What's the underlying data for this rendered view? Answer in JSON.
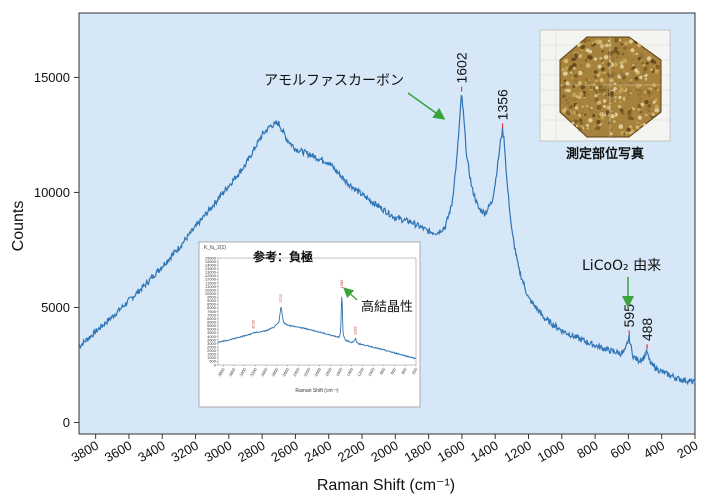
{
  "chart_data": {
    "type": "line",
    "xlabel": "Raman Shift (cm⁻¹)",
    "ylabel": "Counts",
    "xlim": [
      3900,
      200
    ],
    "ylim": [
      -500,
      17800
    ],
    "x_reversed": true,
    "x_ticks": [
      3800,
      3600,
      3400,
      3200,
      3000,
      2800,
      2600,
      2400,
      2200,
      2000,
      1800,
      1600,
      1400,
      1200,
      1000,
      800,
      600,
      400,
      200
    ],
    "y_ticks": [
      0,
      5000,
      10000,
      15000
    ],
    "grid": false,
    "background": "#d6e7f7",
    "series": [
      {
        "color": "#2f74b5",
        "x": [
          3900,
          3700,
          3500,
          3300,
          3100,
          2900,
          2800,
          2750,
          2700,
          2650,
          2600,
          2500,
          2400,
          2300,
          2200,
          2100,
          2000,
          1900,
          1800,
          1750,
          1700,
          1660,
          1630,
          1610,
          1602,
          1590,
          1570,
          1540,
          1500,
          1460,
          1420,
          1400,
          1380,
          1365,
          1356,
          1345,
          1330,
          1300,
          1260,
          1200,
          1100,
          1000,
          900,
          800,
          700,
          640,
          620,
          605,
          595,
          585,
          570,
          540,
          510,
          495,
          488,
          480,
          460,
          400,
          300,
          200
        ],
        "y": [
          3300,
          4600,
          6000,
          7600,
          9400,
          11200,
          12500,
          12900,
          13000,
          12300,
          11900,
          11600,
          11300,
          10500,
          9900,
          9400,
          8900,
          8700,
          8300,
          8250,
          8500,
          9500,
          11500,
          13500,
          14300,
          13300,
          11500,
          10200,
          9300,
          9100,
          9600,
          10400,
          11500,
          12400,
          12700,
          12200,
          10500,
          8300,
          6700,
          5400,
          4500,
          4000,
          3650,
          3350,
          3100,
          3000,
          3100,
          3500,
          3700,
          3300,
          2850,
          2700,
          2800,
          3000,
          3100,
          2800,
          2500,
          2200,
          1900,
          1750
        ]
      }
    ],
    "annotations": [
      {
        "text": "1602",
        "x": 1602,
        "y": 14300
      },
      {
        "text": "1356",
        "x": 1356,
        "y": 12700
      },
      {
        "text": "595",
        "x": 595,
        "y": 3700
      },
      {
        "text": "488",
        "x": 488,
        "y": 3100
      },
      {
        "text": "アモルファスカーボン"
      },
      {
        "text": "LiCoO₂ 由来"
      },
      {
        "text": "測定部位写真"
      }
    ],
    "inset": {
      "title": "参考：負極",
      "panel_label": "K_fu_2(1)",
      "annotation": "高結晶性",
      "xlabel": "Raman Shift (cm⁻¹)",
      "xlim": [
        3900,
        200
      ],
      "ylim": [
        0,
        15000
      ],
      "y_ticks": [
        0,
        500,
        1000,
        1500,
        2000,
        2500,
        3000,
        3500,
        4000,
        4500,
        5000,
        5500,
        6000,
        6500,
        7000,
        7500,
        8000,
        8500,
        9000,
        9500,
        10000,
        10500,
        11000,
        11500,
        12000,
        12500,
        13000,
        13500,
        14000,
        14500,
        15000
      ],
      "x_ticks": [
        3800,
        3600,
        3400,
        3200,
        3000,
        2800,
        2600,
        2400,
        2200,
        2000,
        1800,
        1600,
        1400,
        1200,
        1000,
        800,
        600,
        400,
        200
      ],
      "peak_labels": [
        "3232",
        "2721",
        "1585",
        "1331"
      ],
      "series": {
        "x": [
          3900,
          3700,
          3500,
          3300,
          3240,
          3232,
          3220,
          3000,
          2850,
          2760,
          2735,
          2721,
          2705,
          2680,
          2600,
          2400,
          2200,
          2000,
          1800,
          1640,
          1610,
          1595,
          1585,
          1575,
          1560,
          1520,
          1400,
          1345,
          1331,
          1318,
          1280,
          1000,
          800,
          600,
          400,
          200
        ],
        "y": [
          3200,
          3500,
          3900,
          4300,
          4500,
          4650,
          4500,
          4800,
          5300,
          6000,
          7600,
          8300,
          7400,
          6000,
          5600,
          5300,
          5000,
          4600,
          4200,
          3900,
          4500,
          7800,
          10300,
          7000,
          4200,
          3500,
          3150,
          3400,
          3800,
          3300,
          3000,
          2500,
          2100,
          1700,
          1300,
          900
        ]
      }
    }
  }
}
